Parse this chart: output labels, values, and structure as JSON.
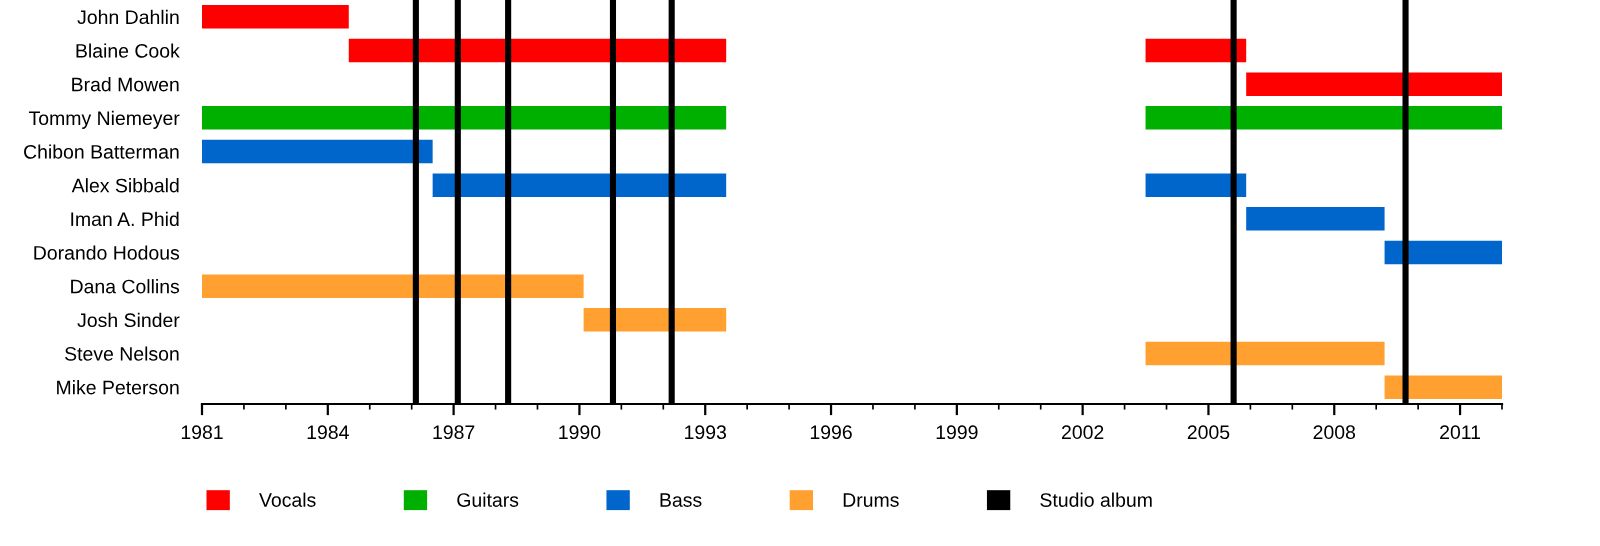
{
  "chart_data": {
    "type": "bar",
    "orientation": "horizontal",
    "categories": [
      "John Dahlin",
      "Blaine Cook",
      "Brad Mowen",
      "Tommy Niemeyer",
      "Chibon Batterman",
      "Alex Sibbald",
      "Iman A. Phid",
      "Dorando Hodous",
      "Dana Collins",
      "Josh Sinder",
      "Steve Nelson",
      "Mike Peterson"
    ],
    "series": [
      {
        "name": "Vocals",
        "color": "#ff0000",
        "values": [
          3.5,
          9.0,
          null,
          null,
          null,
          null,
          null,
          null,
          null,
          null,
          null,
          null
        ],
        "base": [
          1981,
          1984.5,
          null,
          null,
          null,
          null,
          null,
          null,
          null,
          null,
          null,
          null
        ]
      },
      {
        "color": "#ff0000",
        "values": [
          null,
          2.4,
          6.1,
          null,
          null,
          null,
          null,
          null,
          null,
          null,
          null,
          null
        ],
        "base": [
          null,
          2003.5,
          2005.9,
          null,
          null,
          null,
          null,
          null,
          null,
          null,
          null,
          null
        ]
      },
      {
        "name": "Guitars",
        "color": "#00b000",
        "values": [
          null,
          null,
          null,
          12.5,
          null,
          null,
          null,
          null,
          null,
          null,
          null,
          null
        ],
        "base": [
          null,
          null,
          null,
          1981,
          null,
          null,
          null,
          null,
          null,
          null,
          null,
          null
        ]
      },
      {
        "color": "#00b000",
        "values": [
          null,
          null,
          null,
          8.5,
          null,
          null,
          null,
          null,
          null,
          null,
          null,
          null
        ],
        "base": [
          null,
          null,
          null,
          2003.5,
          null,
          null,
          null,
          null,
          null,
          null,
          null,
          null
        ]
      },
      {
        "name": "Bass",
        "color": "#0066cc",
        "values": [
          null,
          null,
          null,
          null,
          5.5,
          7.0,
          null,
          null,
          null,
          null,
          null,
          null
        ],
        "base": [
          null,
          null,
          null,
          null,
          1981,
          1986.5,
          null,
          null,
          null,
          null,
          null,
          null
        ]
      },
      {
        "color": "#0066cc",
        "values": [
          null,
          null,
          null,
          null,
          null,
          2.4,
          3.3,
          2.8,
          null,
          null,
          null,
          null
        ],
        "base": [
          null,
          null,
          null,
          null,
          null,
          2003.5,
          2005.9,
          2009.2,
          null,
          null,
          null,
          null
        ]
      },
      {
        "name": "Drums",
        "color": "#ffa030",
        "values": [
          null,
          null,
          null,
          null,
          null,
          null,
          null,
          null,
          9.1,
          3.4,
          null,
          null
        ],
        "base": [
          null,
          null,
          null,
          null,
          null,
          null,
          null,
          null,
          1981,
          1990.1,
          null,
          null
        ]
      },
      {
        "color": "#ffa030",
        "values": [
          null,
          null,
          null,
          null,
          null,
          null,
          null,
          null,
          null,
          null,
          5.7,
          2.8
        ],
        "base": [
          null,
          null,
          null,
          null,
          null,
          null,
          null,
          null,
          null,
          null,
          2003.5,
          2009.2
        ]
      }
    ],
    "ref_lines": [
      {
        "axis": "x",
        "value": 1986.1,
        "color": "#000000",
        "label": "Studio album"
      },
      {
        "axis": "x",
        "value": 1987.1,
        "color": "#000000"
      },
      {
        "axis": "x",
        "value": 1988.3,
        "color": "#000000"
      },
      {
        "axis": "x",
        "value": 1990.8,
        "color": "#000000"
      },
      {
        "axis": "x",
        "value": 1992.2,
        "color": "#000000"
      },
      {
        "axis": "x",
        "value": 2005.6,
        "color": "#000000"
      },
      {
        "axis": "x",
        "value": 2009.7,
        "color": "#000000"
      }
    ],
    "xlim": [
      1981,
      2012
    ],
    "xticks": [
      1981,
      1984,
      1987,
      1990,
      1993,
      1996,
      1999,
      2002,
      2005,
      2008,
      2011
    ],
    "grid": false,
    "legend": "bottom"
  }
}
